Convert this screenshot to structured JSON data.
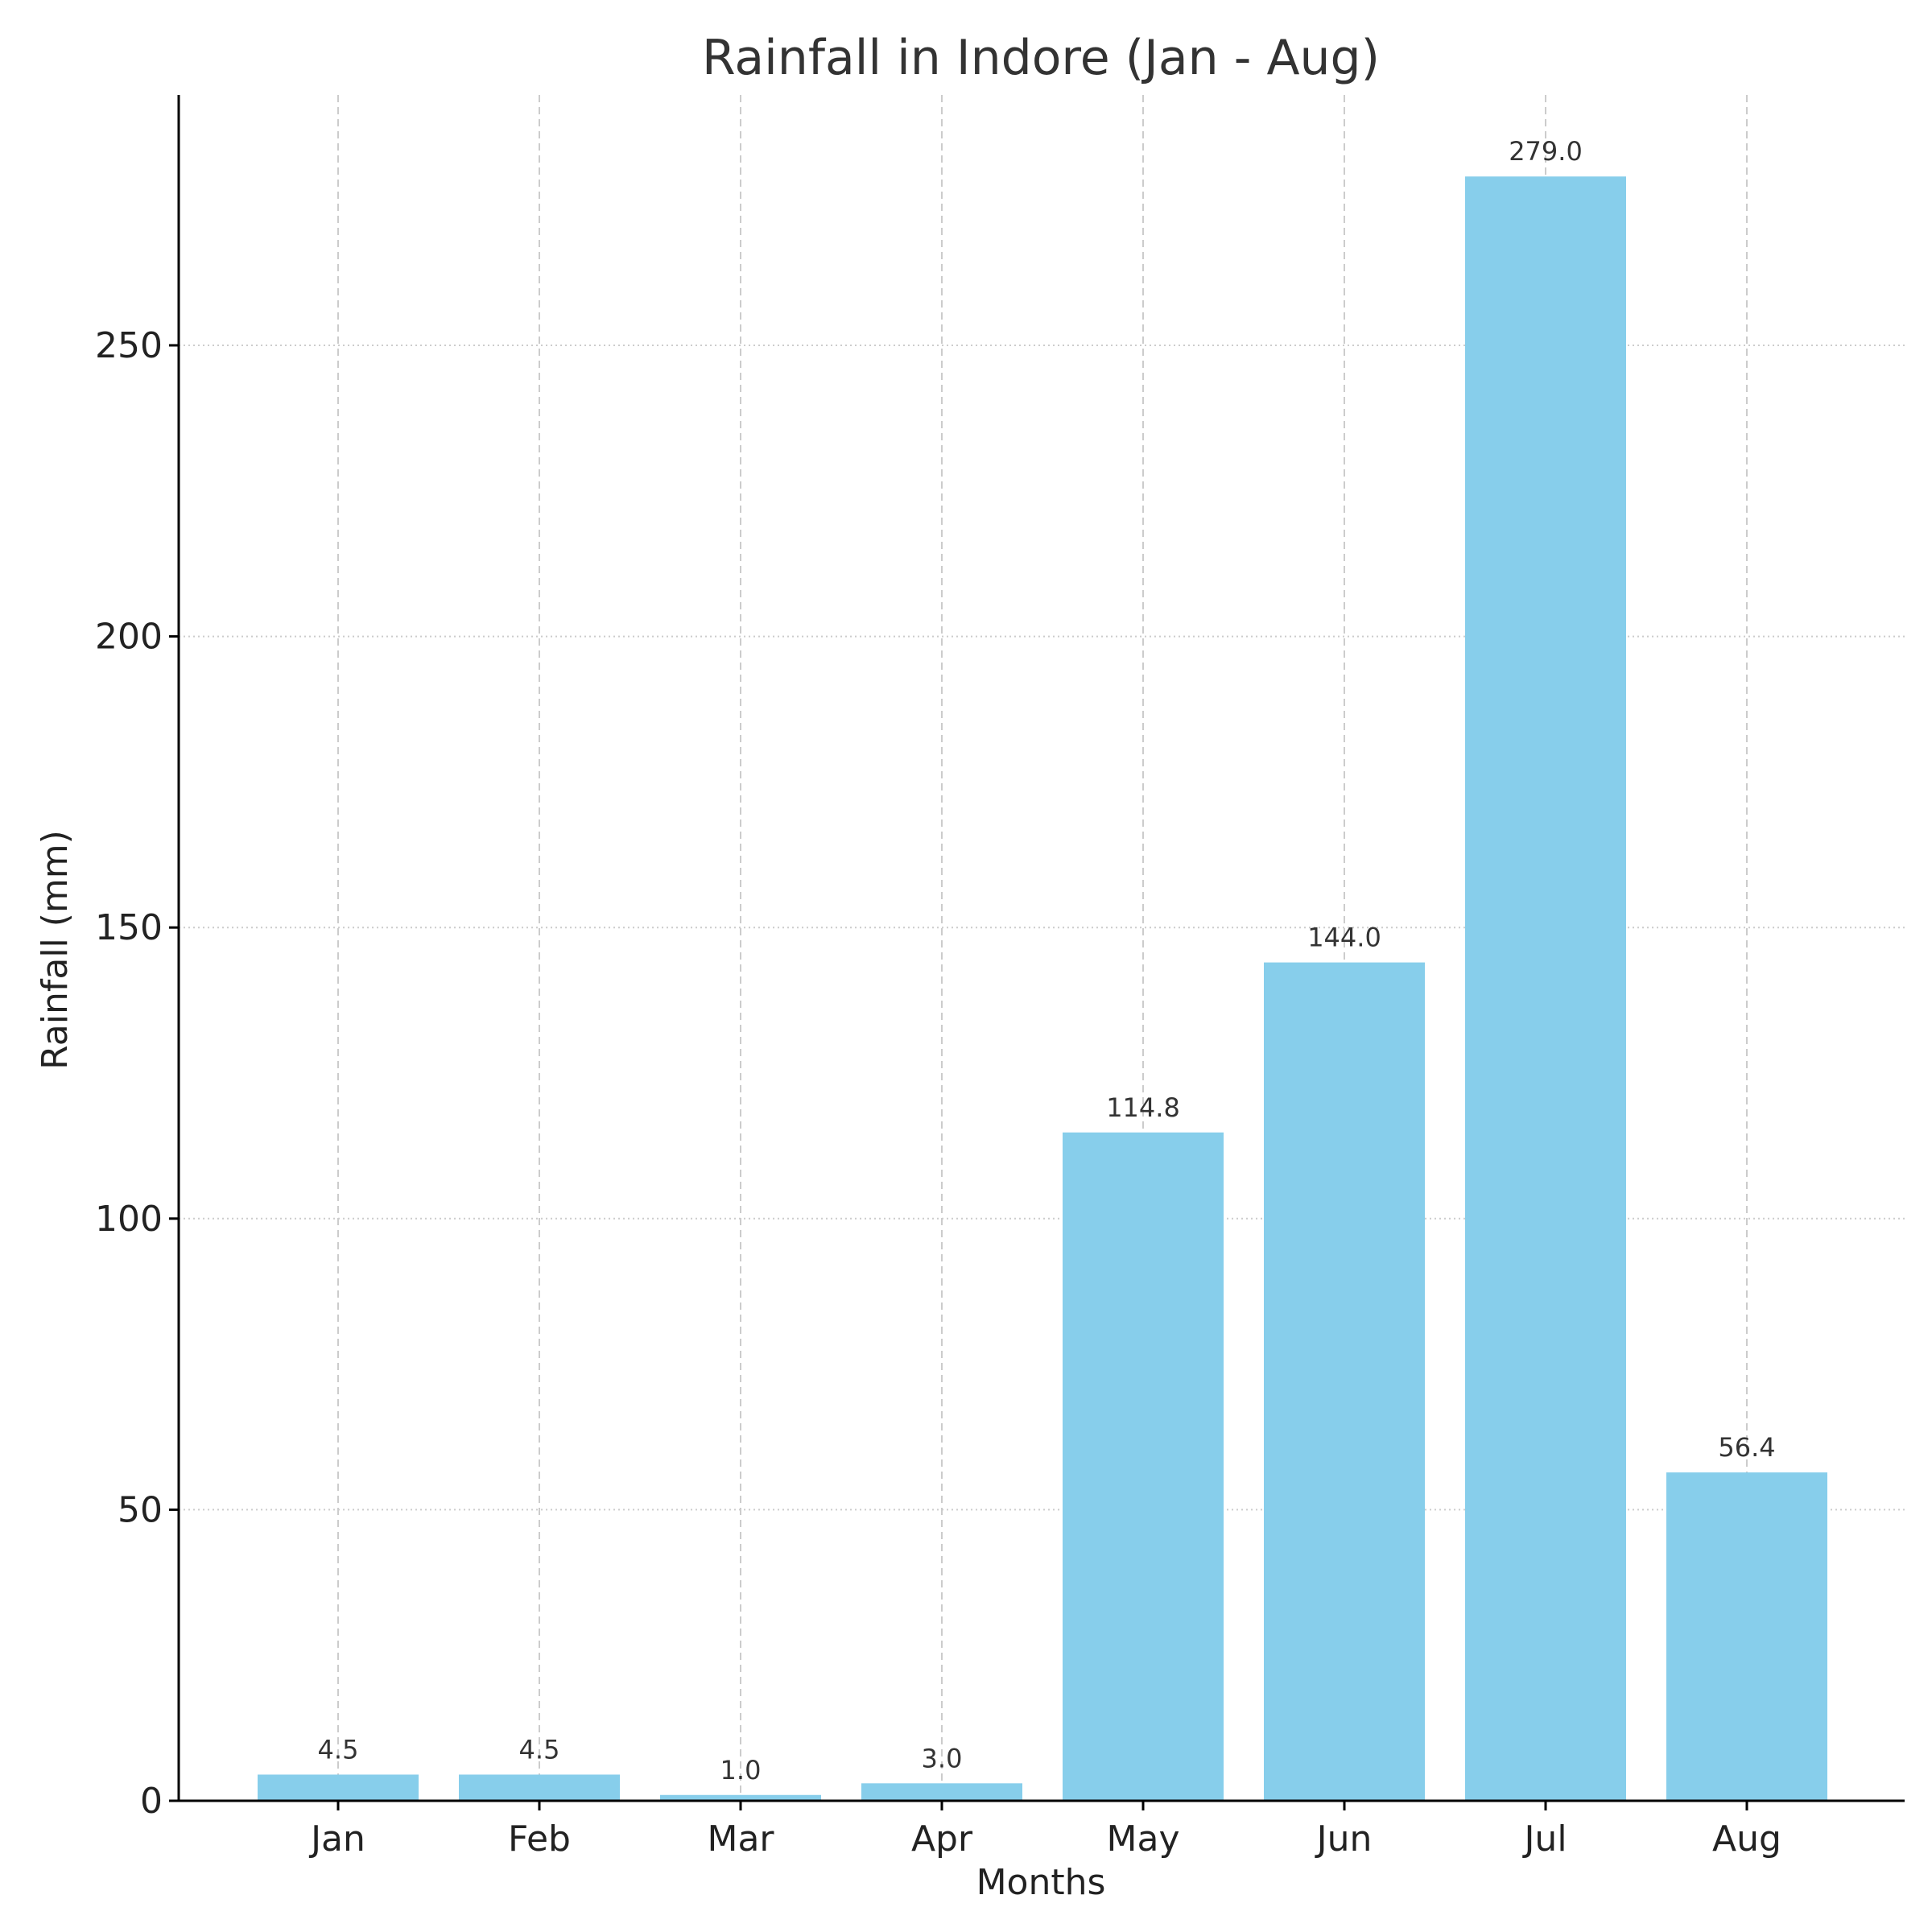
{
  "chart_data": {
    "type": "bar",
    "title": "Rainfall in Indore (Jan - Aug)",
    "xlabel": "Months",
    "ylabel": "Rainfall (mm)",
    "categories": [
      "Jan",
      "Feb",
      "Mar",
      "Apr",
      "May",
      "Jun",
      "Jul",
      "Aug"
    ],
    "values": [
      4.5,
      4.5,
      1.0,
      3.0,
      114.8,
      144.0,
      279.0,
      56.4
    ],
    "value_labels": [
      "4.5",
      "4.5",
      "1.0",
      "3.0",
      "114.8",
      "144.0",
      "279.0",
      "56.4"
    ],
    "ylim": [
      0,
      293
    ],
    "yticks": [
      0,
      50,
      100,
      150,
      200,
      250
    ],
    "grid": true,
    "bar_color": "#87ceeb",
    "axis_color": "#000000",
    "grid_color": "#cccccc"
  }
}
